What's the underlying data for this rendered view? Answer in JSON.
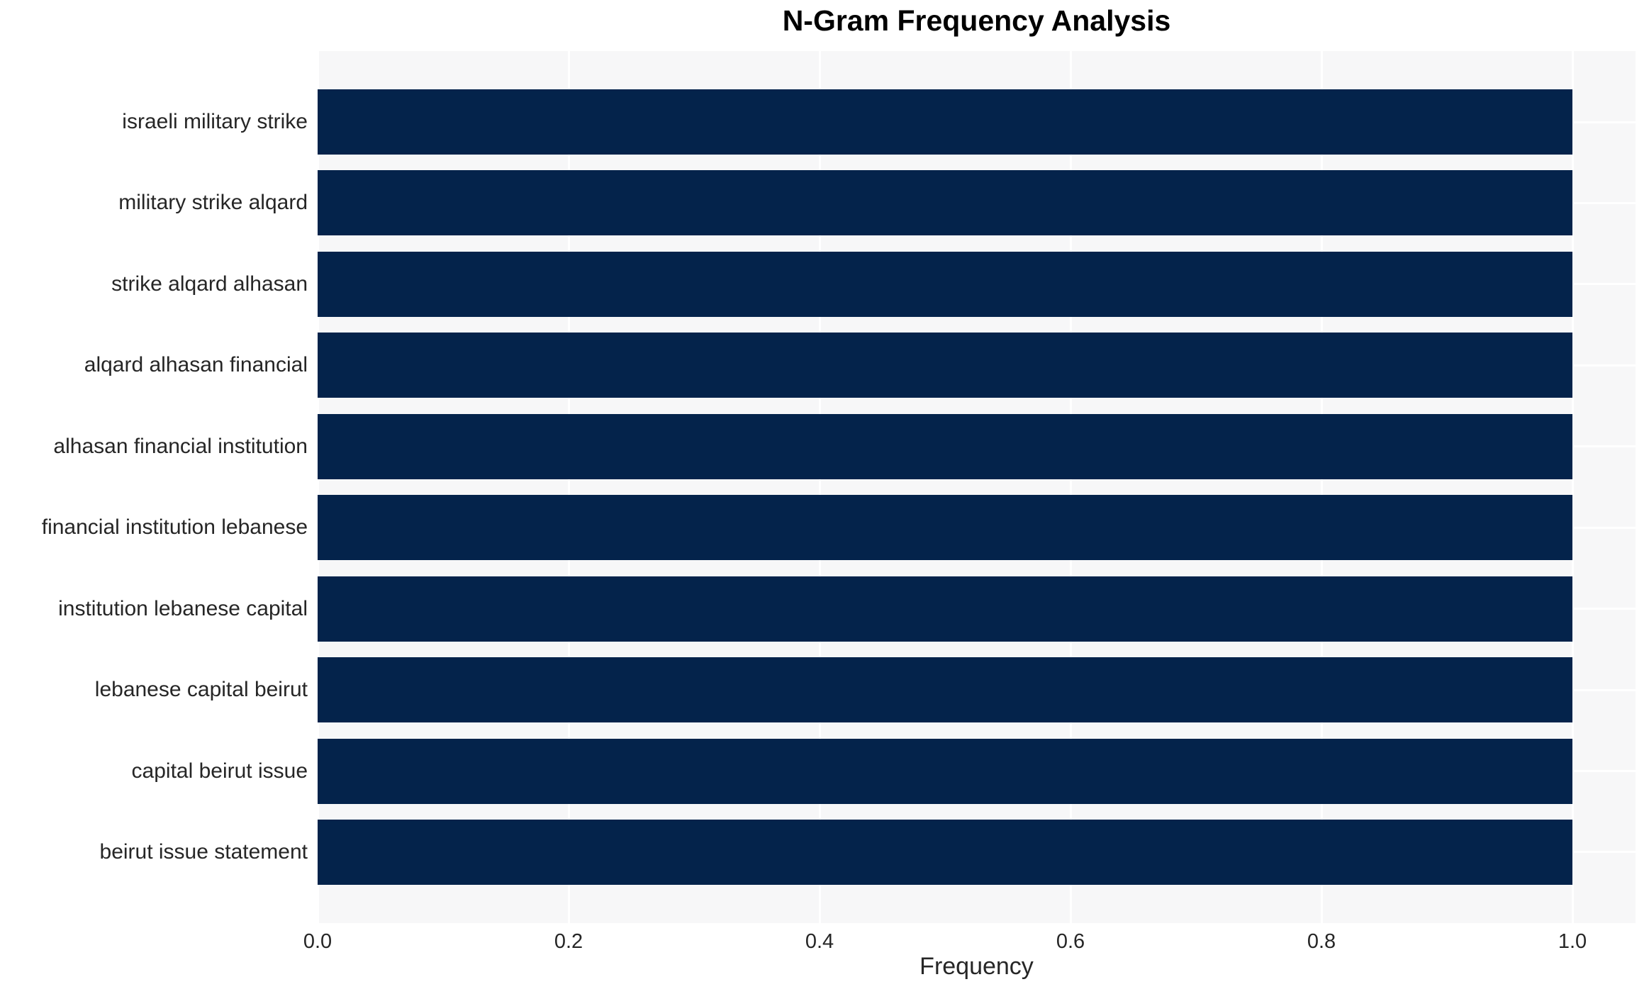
{
  "chart_data": {
    "type": "bar",
    "orientation": "horizontal",
    "title": "N-Gram Frequency Analysis",
    "xlabel": "Frequency",
    "ylabel": "",
    "categories": [
      "israeli military strike",
      "military strike alqard",
      "strike alqard alhasan",
      "alqard alhasan financial",
      "alhasan financial institution",
      "financial institution lebanese",
      "institution lebanese capital",
      "lebanese capital beirut",
      "capital beirut issue",
      "beirut issue statement"
    ],
    "values": [
      1.0,
      1.0,
      1.0,
      1.0,
      1.0,
      1.0,
      1.0,
      1.0,
      1.0,
      1.0
    ],
    "xticks": [
      0.0,
      0.2,
      0.4,
      0.6,
      0.8,
      1.0
    ],
    "xlim": [
      0,
      1.05
    ],
    "grid": true,
    "legend": false,
    "colors": {
      "bar": "#04234b",
      "plot_background": "#f7f7f8",
      "gridline": "#ffffff",
      "title_text": "#000000",
      "axis_text": "#262626"
    }
  }
}
